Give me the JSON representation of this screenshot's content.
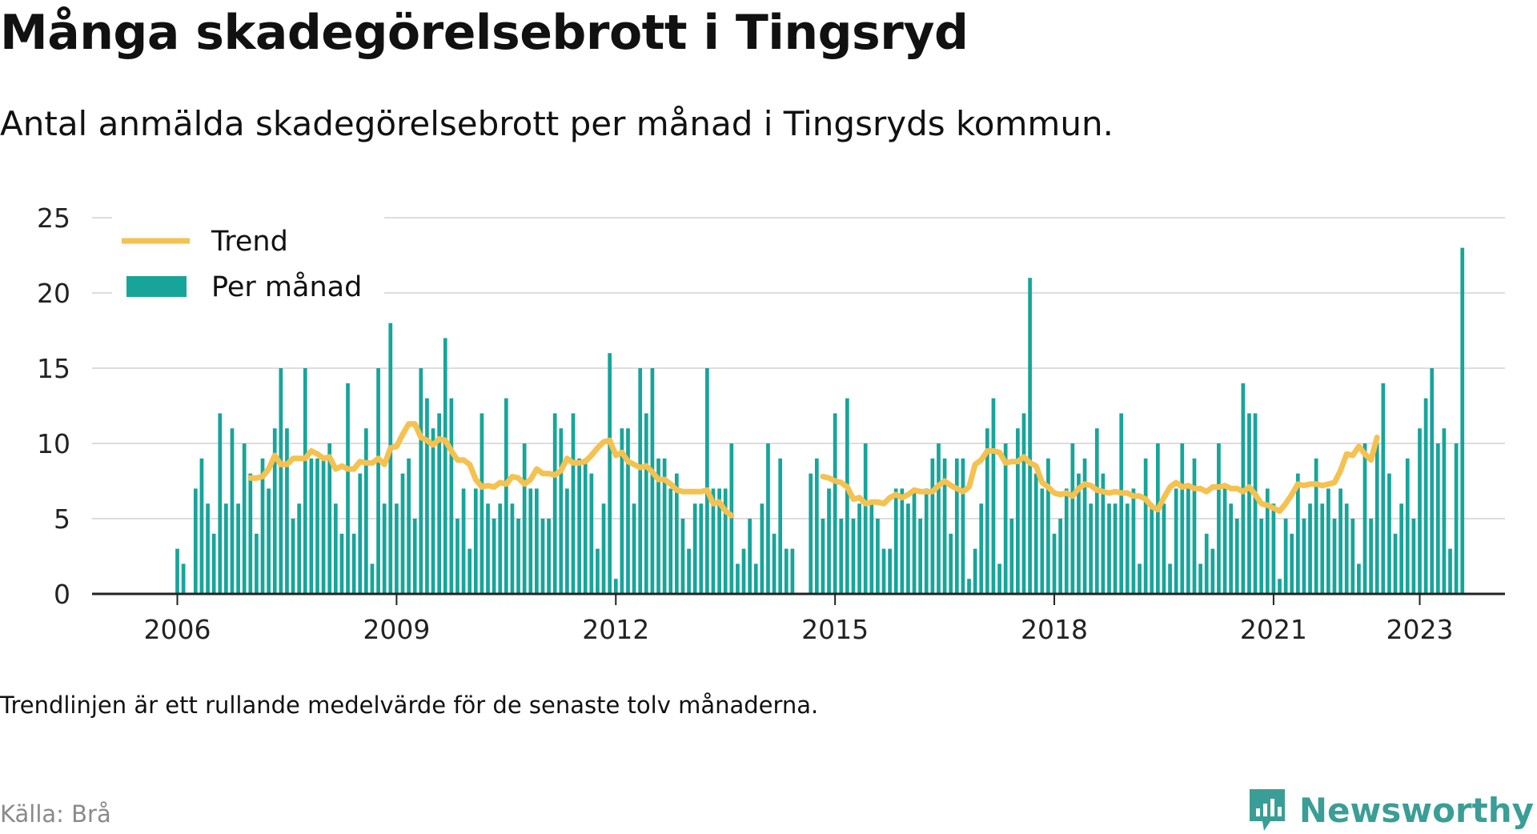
{
  "title": "Många skadegörelsebrott i Tingsryd",
  "subtitle": "Antal anmälda skadegörelsebrott per månad i Tingsryds kommun.",
  "note": "Trendlinjen är ett rullande medelvärde för de senaste tolv månaderna.",
  "source": "Källa: Brå",
  "brand": "Newsworthy",
  "colors": {
    "bars": "#17a59a",
    "trend": "#f5c150",
    "grid": "#dddddd",
    "axis": "#222222",
    "brand": "#3a9e96"
  },
  "chart_data": {
    "type": "bar",
    "start": "2006-01",
    "xlim": [
      "2004-11",
      "2024-03"
    ],
    "ylim": [
      0,
      25
    ],
    "yticks": [
      0,
      5,
      10,
      15,
      20,
      25
    ],
    "xticks": [
      "2006",
      "2009",
      "2012",
      "2015",
      "2018",
      "2021",
      "2023"
    ],
    "legend": {
      "trend": "Trend",
      "bars": "Per månad",
      "position": "top-left"
    },
    "grid": true,
    "series": [
      {
        "name": "Per månad",
        "type": "bar",
        "values": [
          3,
          2,
          null,
          7,
          9,
          6,
          4,
          12,
          6,
          11,
          6,
          10,
          8,
          4,
          9,
          7,
          11,
          15,
          11,
          5,
          6,
          15,
          9,
          9,
          9,
          10,
          6,
          4,
          14,
          4,
          8,
          11,
          2,
          15,
          6,
          18,
          6,
          8,
          9,
          5,
          15,
          13,
          11,
          12,
          17,
          13,
          5,
          7,
          3,
          7,
          12,
          6,
          5,
          6,
          13,
          6,
          5,
          10,
          7,
          7,
          5,
          5,
          12,
          11,
          7,
          12,
          9,
          9,
          8,
          3,
          6,
          16,
          1,
          11,
          11,
          6,
          15,
          12,
          15,
          9,
          9,
          7,
          8,
          5,
          3,
          6,
          6,
          15,
          7,
          7,
          7,
          10,
          2,
          3,
          5,
          2,
          6,
          10,
          4,
          9,
          3,
          3,
          null,
          null,
          8,
          9,
          5,
          7,
          12,
          5,
          13,
          5,
          6,
          10,
          6,
          5,
          3,
          3,
          7,
          7,
          6,
          7,
          5,
          7,
          9,
          10,
          9,
          4,
          9,
          9,
          1,
          3,
          6,
          11,
          13,
          2,
          10,
          5,
          11,
          12,
          21,
          8,
          7,
          9,
          4,
          5,
          7,
          10,
          8,
          9,
          6,
          11,
          8,
          6,
          6,
          12,
          6,
          7,
          2,
          9,
          6,
          10,
          6,
          2,
          7,
          10,
          7,
          9,
          2,
          4,
          3,
          10,
          7,
          6,
          5,
          14,
          12,
          12,
          5,
          7,
          6,
          1,
          5,
          4,
          8,
          5,
          6,
          9,
          6,
          7,
          5,
          7,
          6,
          5,
          2,
          10,
          5,
          10,
          14,
          8,
          4,
          6,
          9,
          5,
          11,
          13,
          15,
          10,
          11,
          3,
          10,
          23
        ]
      },
      {
        "name": "Trend",
        "type": "line",
        "start": "2007-01",
        "values": [
          7.7,
          7.7,
          7.8,
          8.3,
          9.2,
          8.6,
          8.6,
          9.0,
          9.0,
          9.0,
          9.5,
          9.3,
          9.0,
          9.1,
          8.3,
          8.5,
          8.3,
          8.3,
          8.8,
          8.7,
          8.7,
          9.0,
          8.6,
          9.7,
          9.8,
          10.6,
          11.3,
          11.3,
          10.4,
          10.2,
          9.9,
          10.3,
          10.2,
          9.5,
          8.9,
          8.9,
          8.6,
          7.6,
          7.1,
          7.2,
          7.1,
          7.4,
          7.3,
          7.8,
          7.7,
          7.3,
          7.6,
          8.3,
          8.0,
          8.0,
          7.9,
          8.2,
          9.0,
          8.7,
          8.7,
          8.8,
          9.2,
          9.7,
          10.1,
          10.2,
          9.2,
          9.4,
          8.8,
          8.6,
          8.4,
          8.5,
          8.1,
          7.6,
          7.6,
          7.3,
          6.9,
          6.8,
          6.8,
          6.8,
          6.8,
          6.9,
          6.0,
          6.1,
          5.5,
          5.2,
          null,
          null,
          null,
          null,
          null,
          null,
          null,
          null,
          null,
          null,
          null,
          null,
          null,
          null,
          7.8,
          7.7,
          7.5,
          7.4,
          7.1,
          6.3,
          6.4,
          6.0,
          6.1,
          6.1,
          6.0,
          6.4,
          6.6,
          6.4,
          6.6,
          6.9,
          6.8,
          6.8,
          6.8,
          7.2,
          7.5,
          7.2,
          7.0,
          6.8,
          7.1,
          8.6,
          8.9,
          9.5,
          9.5,
          9.4,
          8.7,
          8.8,
          8.8,
          9.1,
          8.7,
          8.5,
          7.4,
          7.1,
          6.7,
          6.6,
          6.7,
          6.5,
          7.0,
          7.3,
          7.2,
          6.9,
          6.8,
          6.7,
          6.8,
          6.7,
          6.7,
          6.5,
          6.5,
          6.3,
          5.8,
          5.6,
          6.4,
          7.1,
          7.4,
          7.1,
          7.2,
          7.0,
          7.0,
          6.8,
          7.1,
          7.1,
          7.2,
          7.0,
          7.0,
          6.8,
          7.1,
          6.6,
          6.0,
          5.9,
          5.7,
          5.5,
          6.0,
          6.6,
          7.3,
          7.2,
          7.3,
          7.3,
          7.2,
          7.3,
          7.4,
          8.2,
          9.3,
          9.2,
          9.8,
          9.3,
          8.9,
          10.4
        ]
      }
    ]
  }
}
